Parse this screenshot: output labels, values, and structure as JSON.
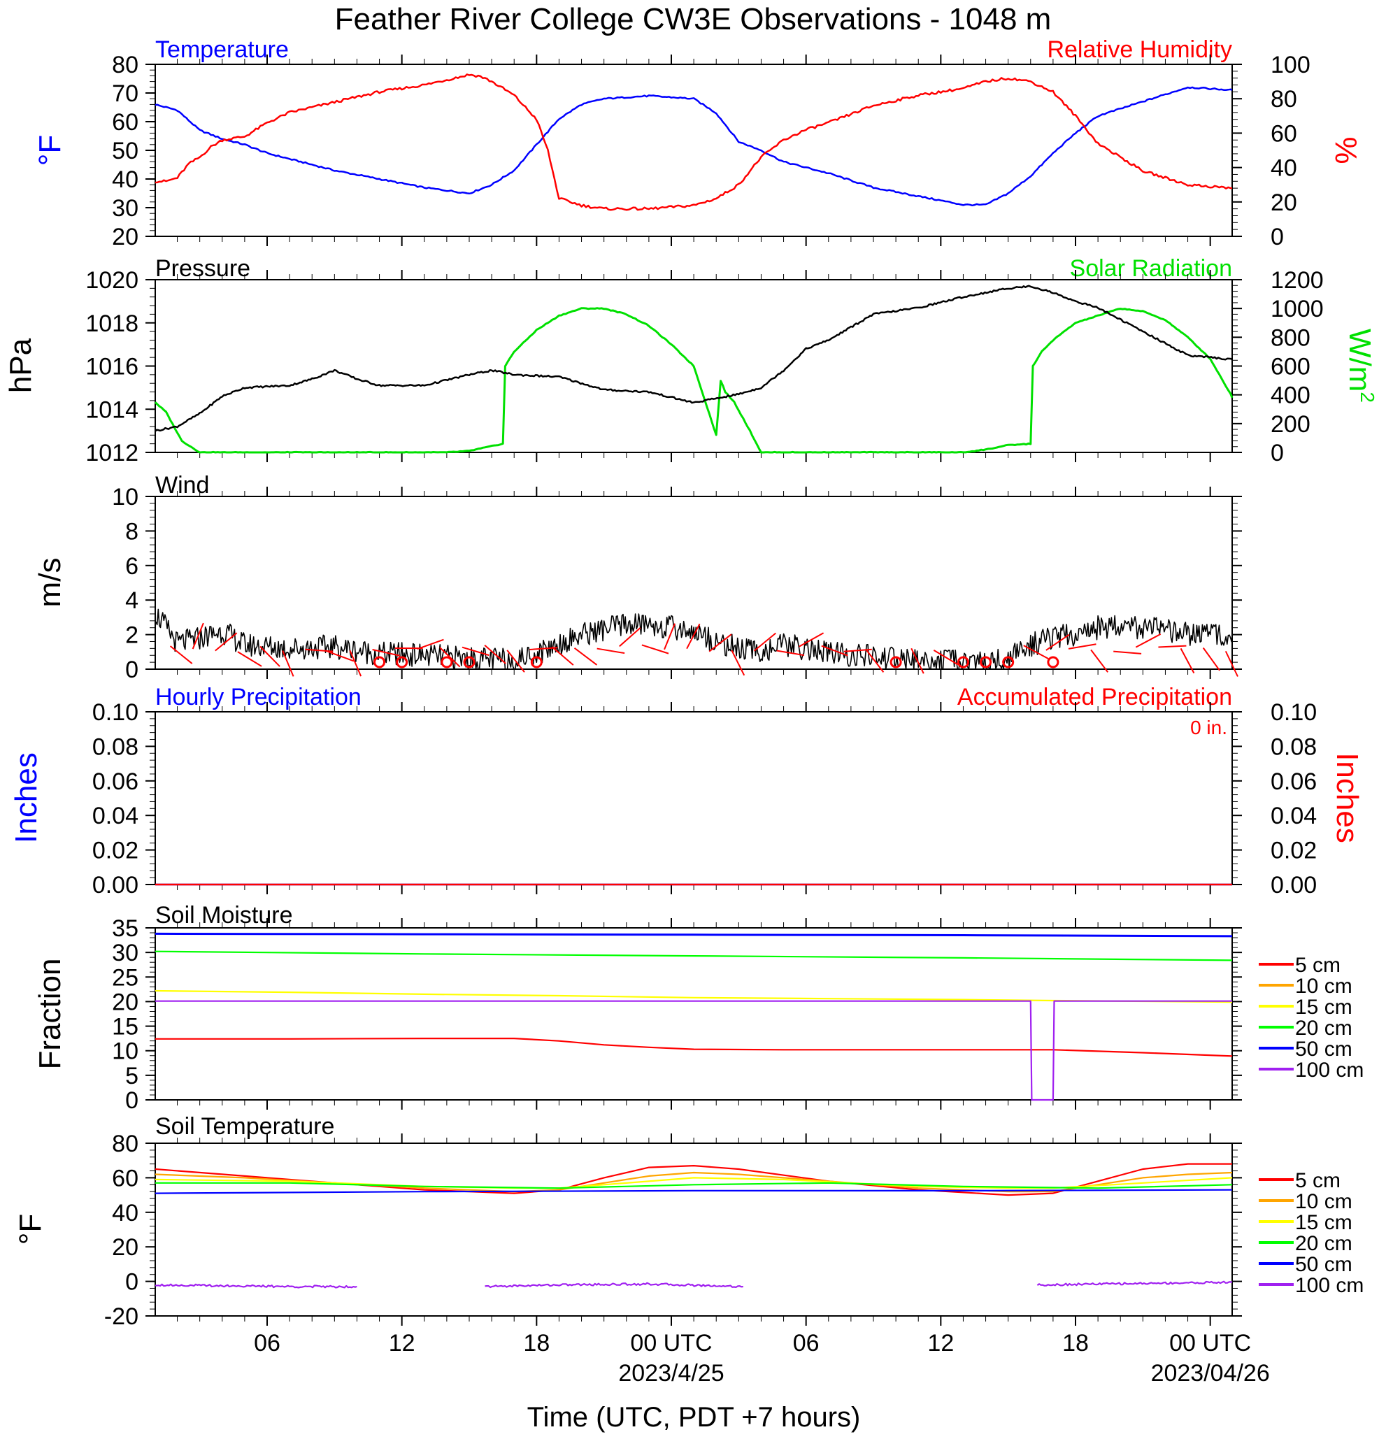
{
  "title": "Feather River College CW3E Observations - 1048 m",
  "colors": {
    "blue": "#0000ff",
    "red": "#ff0000",
    "green": "#00e000",
    "black": "#000000",
    "soil": {
      "5 cm": "#ff0000",
      "10 cm": "#ffa500",
      "15 cm": "#ffff00",
      "20 cm": "#00ff00",
      "50 cm": "#0000ff",
      "100 cm": "#a020f0"
    }
  },
  "chart_data": [
    {
      "type": "line",
      "title": "Temperature",
      "title_right": "Relative Humidity",
      "ylabel": "°F",
      "ylabel_right": "%",
      "ylim": [
        20,
        80
      ],
      "ylim_right": [
        0,
        100
      ],
      "yticks": [
        "80",
        "70",
        "60",
        "50",
        "40",
        "30",
        "20"
      ],
      "yticks_right": [
        "100",
        "80",
        "60",
        "40",
        "20",
        "0"
      ],
      "x_unit": "hours since 2023/04/24 00 UTC",
      "series": [
        {
          "name": "Temperature",
          "axis": "left",
          "x": [
            0,
            1,
            2,
            3,
            4,
            5,
            6,
            8,
            10,
            12,
            14,
            15,
            16,
            17,
            18,
            19,
            20,
            22,
            24,
            25,
            26,
            27,
            28,
            29,
            30,
            32,
            34,
            36,
            37,
            38,
            39,
            40,
            41,
            42,
            44,
            46,
            48
          ],
          "y": [
            66,
            64,
            57,
            54,
            52,
            49,
            47,
            43,
            40,
            37,
            35,
            38,
            43,
            52,
            61,
            66,
            68,
            69,
            68,
            63,
            53,
            50,
            46,
            44,
            42,
            37,
            34,
            31,
            31,
            35,
            41,
            49,
            56,
            62,
            67,
            72,
            71
          ]
        },
        {
          "name": "Relative Humidity",
          "axis": "right",
          "x": [
            0,
            0.5,
            1,
            1.5,
            2,
            2.5,
            3,
            4,
            5,
            6,
            8,
            10,
            12,
            13,
            14,
            14.5,
            15,
            16,
            17,
            17.5,
            18,
            19,
            20,
            22,
            24,
            25,
            26,
            27,
            28,
            29,
            30,
            32,
            34,
            36,
            37,
            38,
            39,
            40,
            41,
            42,
            43,
            44,
            46,
            48
          ],
          "y": [
            32,
            32,
            34,
            42,
            46,
            52,
            56,
            58,
            66,
            72,
            78,
            84,
            88,
            91,
            94,
            93,
            90,
            82,
            68,
            50,
            22,
            18,
            16,
            16,
            18,
            22,
            30,
            46,
            56,
            62,
            66,
            76,
            82,
            86,
            90,
            92,
            90,
            84,
            70,
            54,
            46,
            38,
            30,
            28
          ]
        }
      ]
    },
    {
      "type": "line",
      "title": "Pressure",
      "title_right": "Solar Radiation",
      "ylabel": "hPa",
      "ylabel_right": "W/m",
      "ylabel_right_sup": "2",
      "ylim": [
        1012,
        1020
      ],
      "ylim_right": [
        0,
        1200
      ],
      "yticks": [
        "1020",
        "1018",
        "1016",
        "1014",
        "1012"
      ],
      "yticks_right": [
        "1200",
        "1000",
        "800",
        "600",
        "400",
        "200",
        "0"
      ],
      "series": [
        {
          "name": "Pressure",
          "axis": "left",
          "x": [
            0,
            1,
            2,
            3,
            4,
            6,
            7,
            8,
            9,
            10,
            12,
            14,
            15,
            16,
            18,
            20,
            22,
            24,
            26,
            27,
            28,
            29,
            30,
            31,
            32,
            34,
            36,
            38,
            39,
            40,
            41,
            42,
            44,
            46,
            48
          ],
          "y": [
            1013.0,
            1013.2,
            1013.8,
            1014.6,
            1015.0,
            1015.1,
            1015.4,
            1015.8,
            1015.4,
            1015.1,
            1015.1,
            1015.6,
            1015.8,
            1015.6,
            1015.5,
            1014.9,
            1014.8,
            1014.3,
            1014.7,
            1015.0,
            1015.8,
            1016.8,
            1017.2,
            1017.8,
            1018.4,
            1018.7,
            1019.2,
            1019.6,
            1019.7,
            1019.4,
            1019.0,
            1018.7,
            1017.6,
            1016.5,
            1016.3
          ]
        },
        {
          "name": "Solar Radiation",
          "axis": "right",
          "x": [
            0,
            0.5,
            1.2,
            2,
            3,
            6,
            10,
            12,
            13,
            14,
            15.5,
            15.6,
            16,
            17,
            18,
            19,
            20,
            21,
            22,
            23,
            24,
            25,
            25.2,
            25.4,
            25.8,
            26.5,
            27,
            30,
            34,
            36,
            37,
            38,
            39,
            39.1,
            39.5,
            40,
            41,
            42,
            43,
            44,
            45,
            46,
            47,
            48
          ],
          "y": [
            350,
            280,
            80,
            0,
            0,
            0,
            0,
            0,
            0,
            10,
            60,
            600,
            700,
            850,
            950,
            1000,
            1000,
            960,
            880,
            750,
            600,
            120,
            500,
            420,
            350,
            150,
            0,
            0,
            0,
            0,
            20,
            50,
            60,
            600,
            700,
            780,
            900,
            950,
            1000,
            980,
            920,
            800,
            650,
            380
          ]
        }
      ]
    },
    {
      "type": "line",
      "title": "Wind",
      "ylabel": "m/s",
      "ylim": [
        0,
        10
      ],
      "yticks": [
        "10",
        "8",
        "6",
        "4",
        "2",
        "0"
      ],
      "series": [
        {
          "name": "Wind speed",
          "x": [
            0,
            1,
            2,
            3,
            4,
            6,
            8,
            10,
            12,
            14,
            16,
            17,
            18,
            19,
            20,
            21,
            22,
            23,
            24,
            25,
            26,
            27,
            28,
            29,
            30,
            32,
            34,
            36,
            37,
            38,
            39,
            40,
            41,
            42,
            43,
            44,
            45,
            46,
            47,
            48
          ],
          "y": [
            3.3,
            1.5,
            1.8,
            2.2,
            1.4,
            1.2,
            1.3,
            0.9,
            0.8,
            0.6,
            0.5,
            0.9,
            1.5,
            2.0,
            2.3,
            2.6,
            2.6,
            2.4,
            2.2,
            1.6,
            1.2,
            1.0,
            1.4,
            1.2,
            0.9,
            0.7,
            0.5,
            0.4,
            0.4,
            0.6,
            1.4,
            1.8,
            2.0,
            2.4,
            2.6,
            2.4,
            2.2,
            2.0,
            2.1,
            2.0
          ]
        }
      ],
      "calm_markers_x": [
        10,
        11,
        13,
        14,
        17,
        33,
        36,
        37,
        38,
        40
      ],
      "barb_x": [
        1,
        2,
        3,
        4,
        5,
        6,
        7,
        8,
        9,
        10,
        11,
        12,
        13,
        14,
        15,
        16,
        17,
        18,
        19,
        20,
        21,
        22,
        23,
        24,
        25,
        26,
        27,
        28,
        29,
        30,
        31,
        32,
        34,
        35,
        39,
        40,
        41,
        42,
        43,
        44,
        45,
        46,
        47,
        48
      ]
    },
    {
      "type": "line",
      "title": "Hourly Precipitation",
      "title_right": "Accumulated Precipitation",
      "annotation": "0 in.",
      "ylabel": "Inches",
      "ylabel_right": "Inches",
      "ylim": [
        0,
        0.1
      ],
      "ylim_right": [
        0,
        0.1
      ],
      "yticks": [
        "0.10",
        "0.08",
        "0.06",
        "0.04",
        "0.02",
        "0.00"
      ],
      "yticks_right": [
        "0.10",
        "0.08",
        "0.06",
        "0.04",
        "0.02",
        "0.00"
      ],
      "series": [
        {
          "name": "Hourly Precipitation",
          "x": [
            0,
            48
          ],
          "y": [
            0,
            0
          ]
        },
        {
          "name": "Accumulated Precipitation",
          "x": [
            0,
            48
          ],
          "y": [
            0,
            0
          ]
        }
      ]
    },
    {
      "type": "line",
      "title": "Soil Moisture",
      "ylabel": "Fraction",
      "ylim": [
        0,
        35
      ],
      "yticks": [
        "35",
        "30",
        "25",
        "20",
        "15",
        "10",
        "5",
        "0"
      ],
      "legend": [
        "5 cm",
        "10 cm",
        "15 cm",
        "20 cm",
        "50 cm",
        "100 cm"
      ],
      "series": [
        {
          "name": "5 cm",
          "x": [
            0,
            6,
            12,
            16,
            18,
            20,
            22,
            24,
            28,
            34,
            40,
            44,
            48
          ],
          "y": [
            12.4,
            12.4,
            12.5,
            12.5,
            12.0,
            11.2,
            10.7,
            10.3,
            10.2,
            10.2,
            10.2,
            9.6,
            8.9
          ]
        },
        {
          "name": "15 cm",
          "x": [
            0,
            6,
            12,
            18,
            24,
            30,
            36,
            40,
            48
          ],
          "y": [
            22.2,
            21.9,
            21.5,
            21.2,
            20.8,
            20.6,
            20.4,
            20.2,
            19.9
          ]
        },
        {
          "name": "20 cm",
          "x": [
            0,
            12,
            24,
            36,
            48
          ],
          "y": [
            30.2,
            29.7,
            29.3,
            28.9,
            28.4
          ]
        },
        {
          "name": "50 cm",
          "x": [
            0,
            12,
            24,
            36,
            48
          ],
          "y": [
            33.8,
            33.7,
            33.6,
            33.5,
            33.3
          ]
        },
        {
          "name": "100 cm",
          "x": [
            0,
            39,
            39.05,
            40,
            40.05,
            48
          ],
          "y": [
            20.1,
            20.1,
            0,
            0,
            20.1,
            20.1
          ]
        }
      ]
    },
    {
      "type": "line",
      "title": "Soil Temperature",
      "ylabel": "°F",
      "ylim": [
        -20,
        80
      ],
      "yticks": [
        "80",
        "60",
        "40",
        "20",
        "0",
        "-20"
      ],
      "legend": [
        "5 cm",
        "10 cm",
        "15 cm",
        "20 cm",
        "50 cm",
        "100 cm"
      ],
      "series": [
        {
          "name": "5 cm",
          "x": [
            0,
            4,
            8,
            12,
            16,
            18,
            20,
            22,
            24,
            26,
            30,
            34,
            38,
            40,
            42,
            44,
            46,
            48
          ],
          "y": [
            65,
            61,
            57,
            53,
            51,
            53,
            60,
            66,
            67,
            65,
            58,
            53,
            50,
            51,
            58,
            65,
            68,
            68
          ]
        },
        {
          "name": "10 cm",
          "x": [
            0,
            4,
            8,
            12,
            16,
            18,
            20,
            22,
            24,
            26,
            30,
            34,
            38,
            40,
            42,
            44,
            46,
            48
          ],
          "y": [
            62,
            60,
            57,
            54,
            52,
            53,
            57,
            61,
            63,
            62,
            58,
            54,
            52,
            52,
            56,
            60,
            62,
            63
          ]
        },
        {
          "name": "15 cm",
          "x": [
            0,
            6,
            12,
            16,
            18,
            20,
            24,
            28,
            34,
            38,
            40,
            44,
            48
          ],
          "y": [
            59,
            58,
            55,
            54,
            54,
            56,
            60,
            59,
            55,
            54,
            54,
            57,
            60
          ]
        },
        {
          "name": "20 cm",
          "x": [
            0,
            6,
            12,
            18,
            24,
            30,
            36,
            42,
            48
          ],
          "y": [
            57,
            57,
            55,
            54,
            56,
            57,
            55,
            54,
            56
          ]
        },
        {
          "name": "50 cm",
          "x": [
            0,
            12,
            24,
            36,
            48
          ],
          "y": [
            51,
            52,
            52.5,
            52.5,
            53
          ]
        },
        {
          "name": "100 cm",
          "segments": [
            {
              "x": [
                0,
                3,
                6,
                9
              ],
              "y": [
                -2,
                -2.5,
                -3,
                -3
              ]
            },
            {
              "x": [
                14.7,
                18,
                22,
                26.2
              ],
              "y": [
                -3,
                -2,
                -1.5,
                -3
              ]
            },
            {
              "x": [
                39.3,
                42,
                45,
                48
              ],
              "y": [
                -2,
                -1.5,
                -1,
                -0.5
              ]
            }
          ]
        }
      ]
    }
  ],
  "x_axis": {
    "range": [
      0,
      48
    ],
    "labels": [
      {
        "x": 5,
        "text": "06"
      },
      {
        "x": 11,
        "text": "12"
      },
      {
        "x": 17,
        "text": "18"
      },
      {
        "x": 23,
        "text": "00 UTC",
        "date": "2023/4/25"
      },
      {
        "x": 29,
        "text": "06"
      },
      {
        "x": 35,
        "text": "12"
      },
      {
        "x": 41,
        "text": "18"
      },
      {
        "x": 47,
        "text": "00 UTC",
        "date": "2023/04/26"
      }
    ],
    "xlabel": "Time (UTC, PDT +7 hours)"
  }
}
